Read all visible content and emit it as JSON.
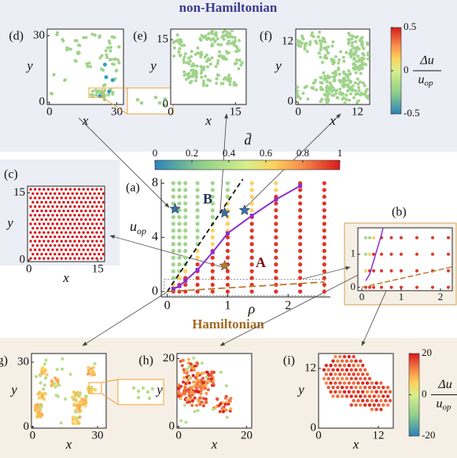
{
  "figure": {
    "top_title": "non-Hamiltonian",
    "bottom_title": "Hamiltonian",
    "panels": {
      "d": {
        "label": "(d)",
        "xlabel": "x",
        "ylabel": "y",
        "xlim": [
          -1,
          33
        ],
        "ylim": [
          -1,
          33
        ],
        "xticks": [
          0,
          30
        ],
        "yticks": [
          0,
          30
        ]
      },
      "e": {
        "label": "(e)",
        "xlabel": "x",
        "ylabel": "y",
        "xlim": [
          0,
          17.5
        ],
        "ylim": [
          0,
          17.5
        ],
        "xticks": [
          0,
          15
        ],
        "yticks": [
          0,
          15
        ]
      },
      "f": {
        "label": "(f)",
        "xlabel": "x",
        "ylabel": "y",
        "xlim": [
          -0.5,
          14.5
        ],
        "ylim": [
          -0.5,
          14.5
        ],
        "xticks": [
          0,
          12
        ],
        "yticks": [
          0,
          12
        ]
      },
      "c": {
        "label": "(c)",
        "xlabel": "x",
        "ylabel": "y",
        "xlim": [
          -0.3,
          16.5
        ],
        "ylim": [
          -0.3,
          16.5
        ],
        "xticks": [
          0,
          15
        ],
        "yticks": [
          0,
          15
        ]
      },
      "g": {
        "label": "(g)",
        "xlabel": "x",
        "ylabel": "y",
        "xlim": [
          -0.5,
          34
        ],
        "ylim": [
          -0.5,
          34
        ],
        "xticks": [
          0,
          30
        ],
        "yticks": [
          0,
          30
        ]
      },
      "h": {
        "label": "(h)",
        "xlabel": "x",
        "ylabel": "y",
        "xlim": [
          -0.5,
          21.5
        ],
        "ylim": [
          -0.5,
          21.5
        ],
        "xticks": [
          0,
          20
        ],
        "yticks": [
          0,
          20
        ]
      },
      "i": {
        "label": "(i)",
        "xlabel": "x",
        "ylabel": "y",
        "xlim": [
          0,
          15
        ],
        "ylim": [
          0,
          15
        ],
        "xticks": [
          0,
          12
        ],
        "yticks": [
          0,
          12
        ]
      }
    },
    "colorbar_top": {
      "lim": [
        -0.5,
        0.5
      ],
      "ticks": [
        -0.5,
        0,
        0.5
      ],
      "label": {
        "num": "Δu",
        "den": "u",
        "den_sub": "op"
      }
    },
    "colorbar_bottom": {
      "lim": [
        -20,
        20
      ],
      "ticks": [
        -20,
        0,
        20
      ],
      "label": {
        "num": "Δu",
        "den": "u",
        "den_sub": "op"
      }
    }
  },
  "chart_data": {
    "type": "scatter",
    "label": "(a)",
    "xlabel": "ρ",
    "ylabel": {
      "text": "u",
      "sub": "op"
    },
    "xlim": [
      -0.1,
      2.7
    ],
    "ylim": [
      -0.4,
      8.3
    ],
    "xticks": [
      0,
      1,
      2
    ],
    "yticks": [
      0,
      4,
      8
    ],
    "u_grid": [
      0,
      0.5,
      1,
      1.5,
      2,
      2.5,
      3,
      3.5,
      4,
      4.5,
      5,
      5.5,
      6,
      6.5,
      7,
      7.5,
      8
    ],
    "columns": [
      {
        "x": 0.1,
        "dbar": [
          0.95,
          0.65,
          0.3,
          0.3,
          0.3,
          0.3,
          0.3,
          0.3,
          0.3,
          0.3,
          0.3,
          0.3,
          0.3,
          0.3,
          0.3,
          0.3,
          0.3
        ]
      },
      {
        "x": 0.2,
        "dbar": [
          0.95,
          0.95,
          0.65,
          0.3,
          0.3,
          0.3,
          0.3,
          0.3,
          0.3,
          0.3,
          0.3,
          0.3,
          0.3,
          0.3,
          0.3,
          0.3,
          0.3
        ]
      },
      {
        "x": 0.3,
        "dbar": [
          0.95,
          0.95,
          0.95,
          0.65,
          0.3,
          0.3,
          0.3,
          0.3,
          0.3,
          0.3,
          0.3,
          0.3,
          0.3,
          0.3,
          0.3,
          0.3,
          0.3
        ]
      },
      {
        "x": 0.5,
        "dbar": [
          0.95,
          0.95,
          0.95,
          0.95,
          0.95,
          0.65,
          0.65,
          0.3,
          0.3,
          0.3,
          0.3,
          0.3,
          0.3,
          0.3,
          0.3,
          0.3,
          0.3
        ]
      },
      {
        "x": 0.75,
        "dbar": [
          0.95,
          0.95,
          0.95,
          0.95,
          0.95,
          0.95,
          0.95,
          0.65,
          0.65,
          0.65,
          0.3,
          0.3,
          0.3,
          0.3,
          0.3,
          0.3,
          0.3
        ]
      },
      {
        "x": 1,
        "dbar": [
          0.95,
          0.95,
          0.95,
          0.95,
          0.95,
          0.95,
          0.95,
          0.95,
          0.95,
          0.65,
          0.65,
          0.65,
          0.65,
          0.65,
          0.3,
          0.3,
          0.3
        ]
      },
      {
        "x": 1.4,
        "dbar": [
          0.95,
          0.95,
          0.95,
          0.95,
          0.95,
          0.95,
          0.95,
          0.95,
          0.95,
          0.95,
          0.95,
          0.95,
          0.65,
          0.65,
          0.65,
          0.65,
          0.65
        ]
      },
      {
        "x": 1.8,
        "dbar": [
          0.95,
          0.95,
          0.95,
          0.95,
          0.95,
          0.95,
          0.95,
          0.95,
          0.95,
          0.95,
          0.95,
          0.95,
          0.95,
          0.95,
          0.95,
          0.65,
          0.65
        ]
      },
      {
        "x": 2.2,
        "dbar": [
          0.95,
          0.95,
          0.95,
          0.95,
          0.95,
          0.95,
          0.95,
          0.95,
          0.95,
          0.95,
          0.95,
          0.95,
          0.95,
          0.95,
          0.95,
          0.95,
          0.95
        ]
      },
      {
        "x": 2.6,
        "dbar": [
          0.95,
          0.95,
          0.95,
          0.95,
          0.95,
          0.95,
          0.95,
          0.95,
          0.95,
          0.95,
          0.95,
          0.95,
          0.95,
          0.95,
          0.95,
          0.95,
          0.95
        ]
      }
    ],
    "colorbar": {
      "label": "d̄",
      "lim": [
        0,
        1
      ],
      "ticks": [
        0,
        0.2,
        0.4,
        0.6,
        0.8,
        1
      ]
    },
    "critical_line": {
      "color": "#8b2fc9",
      "x": [
        0.1,
        0.2,
        0.3,
        0.5,
        0.75,
        1,
        1.4,
        1.8,
        2.2
      ],
      "y": [
        0.2,
        0.4,
        0.8,
        1.6,
        2.9,
        4.3,
        5.6,
        6.8,
        7.8
      ]
    },
    "boundary_B": {
      "x": [
        0,
        1.25
      ],
      "y": [
        0,
        8.3
      ]
    },
    "boundary_H": {
      "x": [
        0,
        2.6
      ],
      "y": [
        0,
        0.7
      ]
    },
    "stars_nonH": {
      "color": "#3a6fa8",
      "x": [
        0.13,
        0.95,
        1.28
      ],
      "y": [
        6.1,
        5.8,
        6.0
      ]
    },
    "star_H": {
      "color": "#b87a2c",
      "x": [
        0.95
      ],
      "y": [
        1.9
      ]
    },
    "region_labels": [
      "A",
      "B"
    ],
    "inset": {
      "label": "(b)",
      "xlim": [
        -0.1,
        2.3
      ],
      "ylim": [
        -0.1,
        1.8
      ],
      "xticks": [
        0,
        1,
        2
      ],
      "yticks": [
        0,
        1
      ]
    }
  }
}
